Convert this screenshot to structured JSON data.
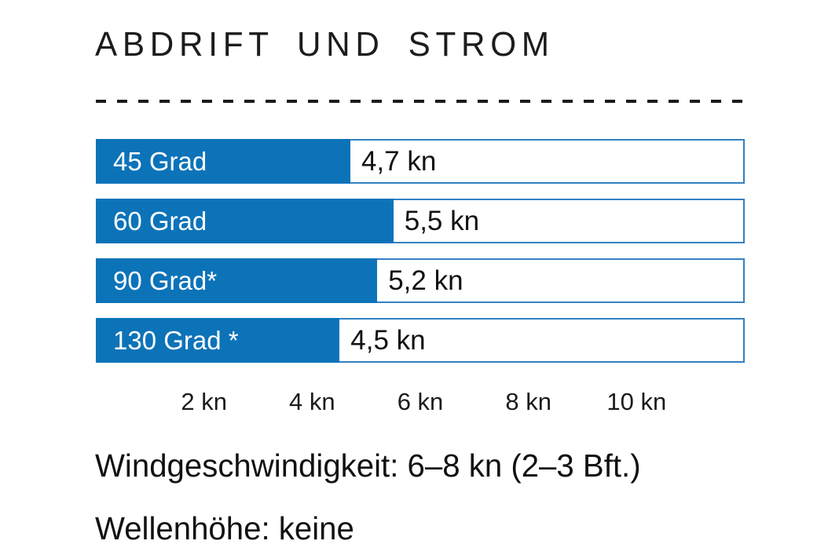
{
  "title": "ABDRIFT UND STROM",
  "colors": {
    "bar_fill": "#0c73b9",
    "bar_border": "#3381c1",
    "text": "#1a1a1a"
  },
  "chart_data": {
    "type": "bar",
    "orientation": "horizontal",
    "title": "ABDRIFT UND STROM",
    "categories": [
      "45 Grad",
      "60 Grad",
      "90 Grad*",
      "130 Grad *"
    ],
    "values": [
      4.7,
      5.5,
      5.2,
      4.5
    ],
    "value_labels": [
      "4,7 kn",
      "5,5 kn",
      "5,2 kn",
      "4,5 kn"
    ],
    "unit": "kn",
    "xlabel": "",
    "ylabel": "",
    "xlim": [
      0,
      12
    ],
    "ticks": [
      {
        "value": 2,
        "label": "2 kn"
      },
      {
        "value": 4,
        "label": "4 kn"
      },
      {
        "value": 6,
        "label": "6 kn"
      },
      {
        "value": 8,
        "label": "8 kn"
      },
      {
        "value": 10,
        "label": "10 kn"
      }
    ],
    "grid": false,
    "legend": false
  },
  "footer": {
    "line1": "Windgeschwindigkeit: 6–8 kn (2–3 Bft.)",
    "line2": "Wellenhöhe: keine"
  }
}
